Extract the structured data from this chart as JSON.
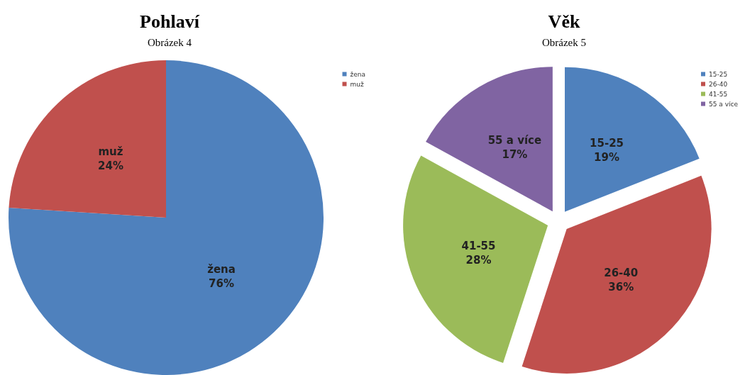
{
  "chart_data": [
    {
      "type": "pie",
      "title": "Pohlaví",
      "subtitle": "Obrázek 4",
      "categories": [
        "žena",
        "muž"
      ],
      "values": [
        76,
        24
      ],
      "value_labels": [
        "76%",
        "24%"
      ],
      "colors": [
        "#4f81bd",
        "#c0504d"
      ],
      "legend": "top right"
    },
    {
      "type": "pie",
      "title": "Věk",
      "subtitle": "Obrázek 5",
      "categories": [
        "15-25",
        "26-40",
        "41-55",
        "55 a více"
      ],
      "values": [
        19,
        36,
        28,
        17
      ],
      "value_labels": [
        "19%",
        "36%",
        "28%",
        "17%"
      ],
      "colors": [
        "#4f81bd",
        "#c0504d",
        "#9bbb59",
        "#8064a2"
      ],
      "legend": "top right"
    }
  ]
}
